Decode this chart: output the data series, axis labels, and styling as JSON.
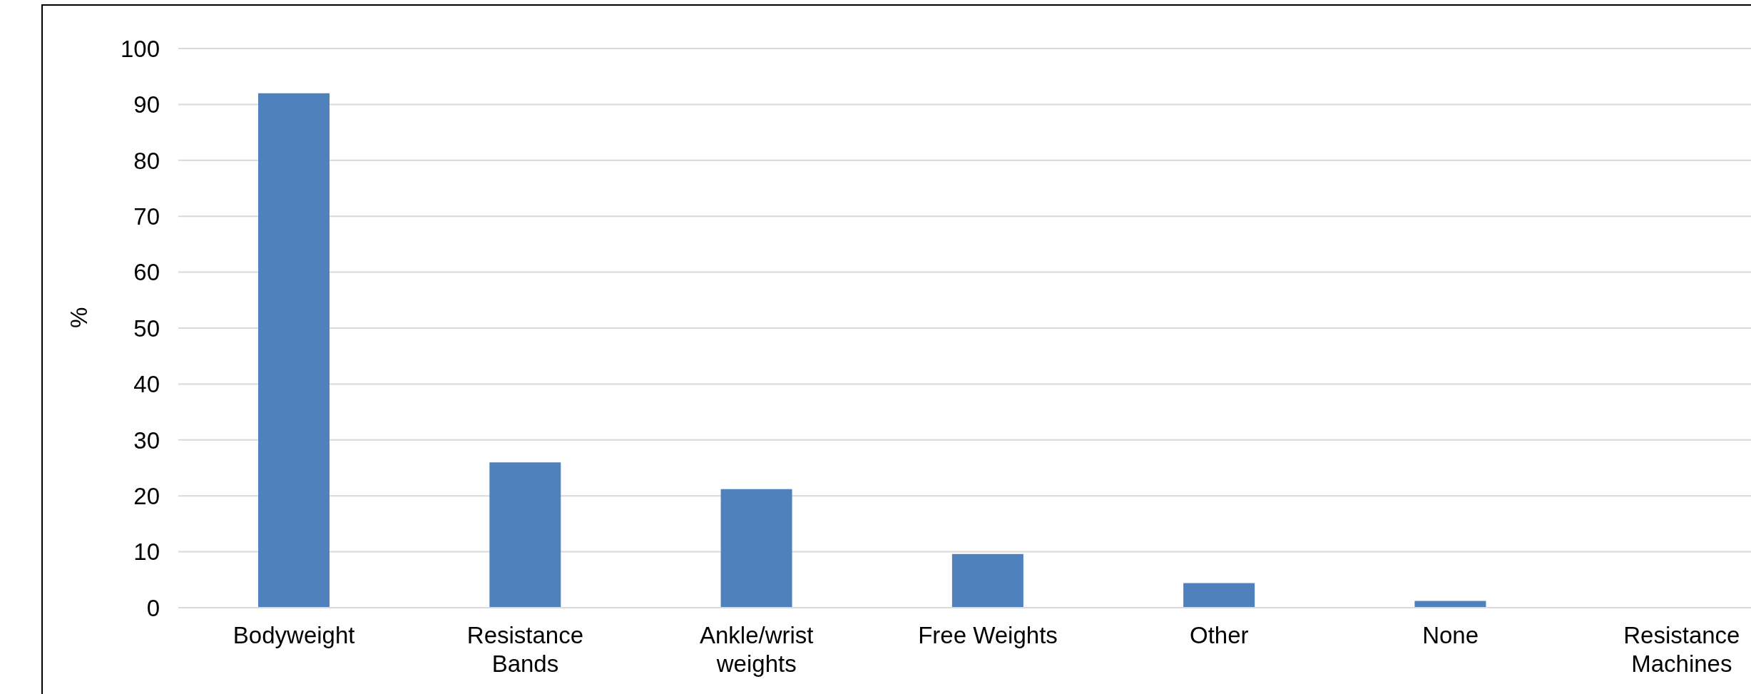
{
  "chart_data": {
    "type": "bar",
    "ylabel": "%",
    "categories": [
      "Bodyweight",
      "Resistance Bands",
      "Ankle/wrist weights",
      "Free Weights",
      "Other",
      "None",
      "Resistance Machines"
    ],
    "values": [
      92,
      26,
      21.2,
      9.6,
      4.4,
      1.2,
      0
    ],
    "color": "#4f81bd",
    "ylim": [
      0,
      100
    ],
    "yticks": [
      0,
      10,
      20,
      30,
      40,
      50,
      60,
      70,
      80,
      90,
      100
    ],
    "grid": "y"
  }
}
